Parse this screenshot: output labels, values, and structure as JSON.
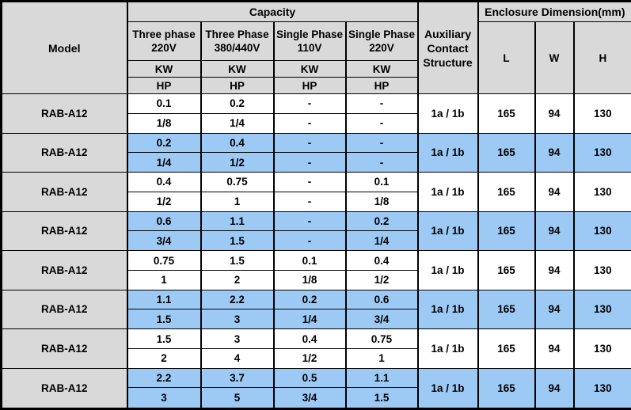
{
  "table": {
    "header": {
      "model": "Model",
      "capacity": "Capacity",
      "enclosure": "Enclosure Dimension(mm)",
      "aux_lines": [
        "Auxiliary",
        "Contact",
        "Structure"
      ],
      "phases": [
        {
          "line1": "Three phase",
          "line2": "220V"
        },
        {
          "line1": "Three Phase",
          "line2": "380/440V"
        },
        {
          "line1": "Single Phase",
          "line2": "110V"
        },
        {
          "line1": "Single Phase",
          "line2": "220V"
        }
      ],
      "kw_label": "KW",
      "hp_label": "HP",
      "dims": [
        "L",
        "W",
        "H"
      ]
    },
    "rows": [
      {
        "model": "RAB-A12",
        "kw": [
          "0.1",
          "0.2",
          "-",
          "-"
        ],
        "hp": [
          "1/8",
          "1/4",
          "-",
          "-"
        ],
        "aux": "1a / 1b",
        "l": "165",
        "w": "94",
        "h": "130",
        "highlight": false
      },
      {
        "model": "RAB-A12",
        "kw": [
          "0.2",
          "0.4",
          "-",
          "-"
        ],
        "hp": [
          "1/4",
          "1/2",
          "-",
          "-"
        ],
        "aux": "1a / 1b",
        "l": "165",
        "w": "94",
        "h": "130",
        "highlight": true
      },
      {
        "model": "RAB-A12",
        "kw": [
          "0.4",
          "0.75",
          "-",
          "0.1"
        ],
        "hp": [
          "1/2",
          "1",
          "-",
          "1/8"
        ],
        "aux": "1a / 1b",
        "l": "165",
        "w": "94",
        "h": "130",
        "highlight": false
      },
      {
        "model": "RAB-A12",
        "kw": [
          "0.6",
          "1.1",
          "-",
          "0.2"
        ],
        "hp": [
          "3/4",
          "1.5",
          "-",
          "1/4"
        ],
        "aux": "1a / 1b",
        "l": "165",
        "w": "94",
        "h": "130",
        "highlight": true
      },
      {
        "model": "RAB-A12",
        "kw": [
          "0.75",
          "1.5",
          "0.1",
          "0.4"
        ],
        "hp": [
          "1",
          "2",
          "1/8",
          "1/2"
        ],
        "aux": "1a / 1b",
        "l": "165",
        "w": "94",
        "h": "130",
        "highlight": false
      },
      {
        "model": "RAB-A12",
        "kw": [
          "1.1",
          "2.2",
          "0.2",
          "0.6"
        ],
        "hp": [
          "1.5",
          "3",
          "1/4",
          "3/4"
        ],
        "aux": "1a / 1b",
        "l": "165",
        "w": "94",
        "h": "130",
        "highlight": true
      },
      {
        "model": "RAB-A12",
        "kw": [
          "1.5",
          "3",
          "0.4",
          "0.75"
        ],
        "hp": [
          "2",
          "4",
          "1/2",
          "1"
        ],
        "aux": "1a / 1b",
        "l": "165",
        "w": "94",
        "h": "130",
        "highlight": false
      },
      {
        "model": "RAB-A12",
        "kw": [
          "2.2",
          "3.7",
          "0.5",
          "1.1"
        ],
        "hp": [
          "3",
          "5",
          "3/4",
          "1.5"
        ],
        "aux": "1a / 1b",
        "l": "165",
        "w": "94",
        "h": "130",
        "highlight": true
      }
    ]
  },
  "colors": {
    "header_bg": "#d9d9d9",
    "row_highlight_bg": "#9dc9f5",
    "row_plain_bg": "#ffffff",
    "border": "#000000",
    "text": "#000000"
  }
}
